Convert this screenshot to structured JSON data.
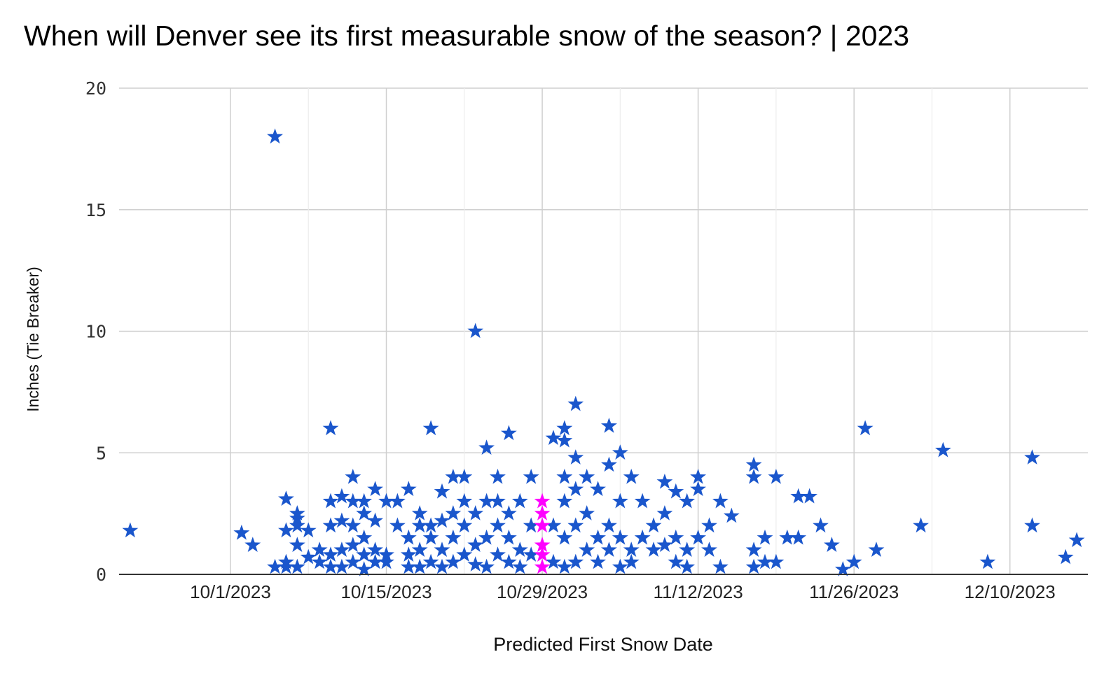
{
  "chart_data": {
    "type": "scatter",
    "title": "When will Denver see its first measurable snow of the season? | 2023",
    "xlabel": "Predicted First Snow Date",
    "ylabel": "Inches (Tie Breaker)",
    "xlim": [
      "2023-09-21",
      "2023-12-17"
    ],
    "ylim": [
      0,
      20
    ],
    "x_ticks": [
      "10/1/2023",
      "10/15/2023",
      "10/29/2023",
      "11/12/2023",
      "11/26/2023",
      "12/10/2023"
    ],
    "x_tick_dates": [
      "2023-10-01",
      "2023-10-15",
      "2023-10-29",
      "2023-11-12",
      "2023-11-26",
      "2023-12-10"
    ],
    "y_ticks": [
      "0",
      "5",
      "10",
      "15",
      "20"
    ],
    "grid": true,
    "marker": "star",
    "colors": {
      "series": "#1a56cc",
      "highlight": "#ff00ff"
    },
    "series": [
      {
        "color": "#1a56cc",
        "points": [
          [
            "2023-09-22",
            1.8
          ],
          [
            "2023-10-02",
            1.7
          ],
          [
            "2023-10-03",
            1.2
          ],
          [
            "2023-10-05",
            0.3
          ],
          [
            "2023-10-05",
            18
          ],
          [
            "2023-10-06",
            0.3
          ],
          [
            "2023-10-06",
            0.5
          ],
          [
            "2023-10-06",
            1.8
          ],
          [
            "2023-10-06",
            3.1
          ],
          [
            "2023-10-07",
            0.3
          ],
          [
            "2023-10-07",
            1.2
          ],
          [
            "2023-10-07",
            2.0
          ],
          [
            "2023-10-07",
            2.3
          ],
          [
            "2023-10-07",
            2.5
          ],
          [
            "2023-10-08",
            0.7
          ],
          [
            "2023-10-08",
            1.8
          ],
          [
            "2023-10-09",
            0.5
          ],
          [
            "2023-10-09",
            1.0
          ],
          [
            "2023-10-10",
            0.3
          ],
          [
            "2023-10-10",
            0.8
          ],
          [
            "2023-10-10",
            2.0
          ],
          [
            "2023-10-10",
            3.0
          ],
          [
            "2023-10-10",
            6.0
          ],
          [
            "2023-10-11",
            0.3
          ],
          [
            "2023-10-11",
            1.0
          ],
          [
            "2023-10-11",
            2.2
          ],
          [
            "2023-10-11",
            3.2
          ],
          [
            "2023-10-12",
            0.5
          ],
          [
            "2023-10-12",
            1.2
          ],
          [
            "2023-10-12",
            2.0
          ],
          [
            "2023-10-12",
            3.0
          ],
          [
            "2023-10-12",
            4.0
          ],
          [
            "2023-10-13",
            0.2
          ],
          [
            "2023-10-13",
            0.8
          ],
          [
            "2023-10-13",
            1.5
          ],
          [
            "2023-10-13",
            2.5
          ],
          [
            "2023-10-13",
            3.0
          ],
          [
            "2023-10-14",
            0.5
          ],
          [
            "2023-10-14",
            1.0
          ],
          [
            "2023-10-14",
            2.2
          ],
          [
            "2023-10-14",
            3.5
          ],
          [
            "2023-10-15",
            0.5
          ],
          [
            "2023-10-15",
            0.8
          ],
          [
            "2023-10-15",
            3.0
          ],
          [
            "2023-10-16",
            2.0
          ],
          [
            "2023-10-16",
            3.0
          ],
          [
            "2023-10-17",
            0.3
          ],
          [
            "2023-10-17",
            0.8
          ],
          [
            "2023-10-17",
            1.5
          ],
          [
            "2023-10-17",
            3.5
          ],
          [
            "2023-10-18",
            0.3
          ],
          [
            "2023-10-18",
            1.0
          ],
          [
            "2023-10-18",
            2.0
          ],
          [
            "2023-10-18",
            2.5
          ],
          [
            "2023-10-19",
            0.5
          ],
          [
            "2023-10-19",
            1.5
          ],
          [
            "2023-10-19",
            2.0
          ],
          [
            "2023-10-19",
            6.0
          ],
          [
            "2023-10-20",
            0.3
          ],
          [
            "2023-10-20",
            1.0
          ],
          [
            "2023-10-20",
            2.2
          ],
          [
            "2023-10-20",
            3.4
          ],
          [
            "2023-10-21",
            0.5
          ],
          [
            "2023-10-21",
            1.5
          ],
          [
            "2023-10-21",
            2.5
          ],
          [
            "2023-10-21",
            4.0
          ],
          [
            "2023-10-22",
            0.8
          ],
          [
            "2023-10-22",
            2.0
          ],
          [
            "2023-10-22",
            3.0
          ],
          [
            "2023-10-22",
            4.0
          ],
          [
            "2023-10-23",
            0.4
          ],
          [
            "2023-10-23",
            1.2
          ],
          [
            "2023-10-23",
            2.5
          ],
          [
            "2023-10-23",
            10.0
          ],
          [
            "2023-10-24",
            5.2
          ],
          [
            "2023-10-24",
            0.3
          ],
          [
            "2023-10-24",
            1.5
          ],
          [
            "2023-10-24",
            3.0
          ],
          [
            "2023-10-25",
            0.8
          ],
          [
            "2023-10-25",
            2.0
          ],
          [
            "2023-10-25",
            3.0
          ],
          [
            "2023-10-25",
            4.0
          ],
          [
            "2023-10-26",
            0.5
          ],
          [
            "2023-10-26",
            1.5
          ],
          [
            "2023-10-26",
            2.5
          ],
          [
            "2023-10-26",
            5.8
          ],
          [
            "2023-10-27",
            0.3
          ],
          [
            "2023-10-27",
            1.0
          ],
          [
            "2023-10-27",
            3.0
          ],
          [
            "2023-10-28",
            0.8
          ],
          [
            "2023-10-28",
            2.0
          ],
          [
            "2023-10-28",
            4.0
          ],
          [
            "2023-10-30",
            0.5
          ],
          [
            "2023-10-30",
            2.0
          ],
          [
            "2023-10-30",
            5.6
          ],
          [
            "2023-10-31",
            0.3
          ],
          [
            "2023-10-31",
            1.5
          ],
          [
            "2023-10-31",
            3.0
          ],
          [
            "2023-10-31",
            4.0
          ],
          [
            "2023-10-31",
            5.5
          ],
          [
            "2023-10-31",
            6.0
          ],
          [
            "2023-11-01",
            0.5
          ],
          [
            "2023-11-01",
            2.0
          ],
          [
            "2023-11-01",
            3.5
          ],
          [
            "2023-11-01",
            4.8
          ],
          [
            "2023-11-01",
            7.0
          ],
          [
            "2023-11-02",
            1.0
          ],
          [
            "2023-11-02",
            2.5
          ],
          [
            "2023-11-02",
            4.0
          ],
          [
            "2023-11-03",
            0.5
          ],
          [
            "2023-11-03",
            1.5
          ],
          [
            "2023-11-03",
            3.5
          ],
          [
            "2023-11-04",
            1.0
          ],
          [
            "2023-11-04",
            2.0
          ],
          [
            "2023-11-04",
            4.5
          ],
          [
            "2023-11-04",
            6.1
          ],
          [
            "2023-11-05",
            0.3
          ],
          [
            "2023-11-05",
            1.5
          ],
          [
            "2023-11-05",
            3.0
          ],
          [
            "2023-11-05",
            5.0
          ],
          [
            "2023-11-06",
            0.5
          ],
          [
            "2023-11-06",
            1.0
          ],
          [
            "2023-11-06",
            4.0
          ],
          [
            "2023-11-07",
            1.5
          ],
          [
            "2023-11-07",
            3.0
          ],
          [
            "2023-11-08",
            1.0
          ],
          [
            "2023-11-08",
            2.0
          ],
          [
            "2023-11-09",
            1.2
          ],
          [
            "2023-11-09",
            2.5
          ],
          [
            "2023-11-09",
            3.8
          ],
          [
            "2023-11-10",
            0.5
          ],
          [
            "2023-11-10",
            1.5
          ],
          [
            "2023-11-10",
            3.4
          ],
          [
            "2023-11-11",
            0.3
          ],
          [
            "2023-11-11",
            1.0
          ],
          [
            "2023-11-11",
            3.0
          ],
          [
            "2023-11-12",
            1.5
          ],
          [
            "2023-11-12",
            3.5
          ],
          [
            "2023-11-12",
            4.0
          ],
          [
            "2023-11-13",
            1.0
          ],
          [
            "2023-11-13",
            2.0
          ],
          [
            "2023-11-14",
            0.3
          ],
          [
            "2023-11-14",
            3.0
          ],
          [
            "2023-11-15",
            2.4
          ],
          [
            "2023-11-17",
            0.3
          ],
          [
            "2023-11-17",
            1.0
          ],
          [
            "2023-11-17",
            4.0
          ],
          [
            "2023-11-17",
            4.5
          ],
          [
            "2023-11-18",
            0.5
          ],
          [
            "2023-11-18",
            1.5
          ],
          [
            "2023-11-19",
            0.5
          ],
          [
            "2023-11-19",
            4.0
          ],
          [
            "2023-11-20",
            1.5
          ],
          [
            "2023-11-21",
            1.5
          ],
          [
            "2023-11-21",
            3.2
          ],
          [
            "2023-11-22",
            3.2
          ],
          [
            "2023-11-23",
            2.0
          ],
          [
            "2023-11-24",
            1.2
          ],
          [
            "2023-11-25",
            0.2
          ],
          [
            "2023-11-26",
            0.5
          ],
          [
            "2023-11-27",
            6.0
          ],
          [
            "2023-11-28",
            1.0
          ],
          [
            "2023-12-02",
            2.0
          ],
          [
            "2023-12-04",
            5.1
          ],
          [
            "2023-12-08",
            0.5
          ],
          [
            "2023-12-12",
            2.0
          ],
          [
            "2023-12-12",
            4.8
          ],
          [
            "2023-12-15",
            0.7
          ],
          [
            "2023-12-16",
            1.4
          ]
        ]
      },
      {
        "color": "#ff00ff",
        "points": [
          [
            "2023-10-29",
            0.3
          ],
          [
            "2023-10-29",
            0.8
          ],
          [
            "2023-10-29",
            1.2
          ],
          [
            "2023-10-29",
            2.0
          ],
          [
            "2023-10-29",
            2.5
          ],
          [
            "2023-10-29",
            3.0
          ]
        ]
      }
    ]
  }
}
